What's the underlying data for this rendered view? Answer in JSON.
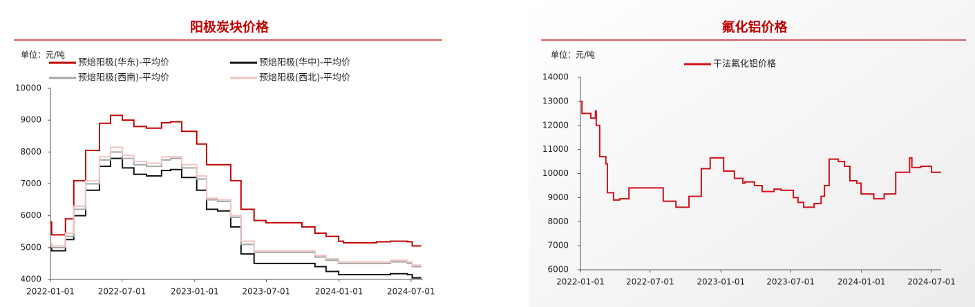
{
  "chart_data": [
    {
      "type": "line",
      "step": "after",
      "title": "阳极炭块价格",
      "unit_label": "单位：元/吨",
      "legend": "top",
      "x": [
        "2022-01-01",
        "2022-01-04",
        "2022-02-08",
        "2022-03-01",
        "2022-03-31",
        "2022-05-05",
        "2022-06-02",
        "2022-07-02",
        "2022-07-31",
        "2022-09-01",
        "2022-10-09",
        "2022-11-01",
        "2022-11-29",
        "2023-01-06",
        "2023-01-31",
        "2023-02-28",
        "2023-04-02",
        "2023-04-28",
        "2023-05-31",
        "2023-06-30",
        "2023-09-29",
        "2023-11-01",
        "2023-11-29",
        "2023-12-31",
        "2024-01-12",
        "2024-04-05",
        "2024-05-10",
        "2024-06-22",
        "2024-07-04",
        "2024-07-27"
      ],
      "series": [
        {
          "name": "预焙阳极(华东)-平均价",
          "color": "#c00000",
          "values": [
            5800,
            5400,
            5900,
            7100,
            8050,
            8900,
            9150,
            9000,
            8800,
            8750,
            8920,
            8950,
            8650,
            8250,
            7600,
            7600,
            7100,
            6200,
            5850,
            5780,
            5650,
            5450,
            5350,
            5200,
            5150,
            5180,
            5200,
            5180,
            5050,
            5050
          ]
        },
        {
          "name": "预焙阳极(华中)-平均价",
          "color": "#111111",
          "values": [
            5000,
            4900,
            5250,
            6000,
            6800,
            7550,
            7800,
            7500,
            7300,
            7250,
            7420,
            7450,
            7200,
            6800,
            6200,
            6150,
            5650,
            4800,
            4500,
            4500,
            4500,
            4400,
            4250,
            4150,
            4150,
            4150,
            4180,
            4150,
            4050,
            4050
          ]
        },
        {
          "name": "预焙阳极(西南)-平均价",
          "color": "#a6a6a6",
          "values": [
            5100,
            5000,
            5350,
            6200,
            7000,
            7750,
            8000,
            7800,
            7600,
            7550,
            7750,
            7800,
            7500,
            7150,
            6500,
            6450,
            5950,
            5100,
            4850,
            4850,
            4850,
            4700,
            4600,
            4500,
            4500,
            4500,
            4550,
            4500,
            4400,
            4400
          ]
        },
        {
          "name": "预焙阳极(西北)-平均价",
          "color": "#f2c4c4",
          "values": [
            5150,
            5050,
            5450,
            6300,
            7100,
            7850,
            8150,
            7900,
            7700,
            7650,
            7850,
            7850,
            7600,
            7250,
            6550,
            6500,
            6000,
            5200,
            4900,
            4900,
            4900,
            4750,
            4650,
            4550,
            4550,
            4550,
            4600,
            4550,
            4450,
            4450
          ]
        }
      ],
      "xlim": [
        "2022-01-01",
        "2024-07-31"
      ],
      "xticks": [
        "2022-01-01",
        "2022-07-01",
        "2023-01-01",
        "2023-07-01",
        "2024-01-01",
        "2024-07-01"
      ],
      "ylim": [
        4000,
        10000
      ],
      "yticks": [
        4000,
        5000,
        6000,
        7000,
        8000,
        9000,
        10000
      ]
    },
    {
      "type": "line",
      "step": "after",
      "title": "氟化铝价格",
      "unit_label": "单位：元/吨",
      "legend": "top",
      "x": [
        "2022-01-01",
        "2022-01-05",
        "2022-01-28",
        "2022-02-09",
        "2022-02-11",
        "2022-02-20",
        "2022-03-08",
        "2022-03-12",
        "2022-03-28",
        "2022-04-13",
        "2022-05-07",
        "2022-08-04",
        "2022-09-06",
        "2022-10-10",
        "2022-11-11",
        "2022-12-04",
        "2023-01-08",
        "2023-02-05",
        "2023-02-27",
        "2023-03-04",
        "2023-03-29",
        "2023-04-18",
        "2023-05-19",
        "2023-06-06",
        "2023-07-08",
        "2023-07-20",
        "2023-08-04",
        "2023-08-31",
        "2023-09-18",
        "2023-09-27",
        "2023-10-09",
        "2023-11-02",
        "2023-11-18",
        "2023-12-02",
        "2023-12-20",
        "2023-12-31",
        "2024-02-02",
        "2024-02-29",
        "2024-03-30",
        "2024-05-05",
        "2024-05-11",
        "2024-06-03",
        "2024-07-01",
        "2024-07-26"
      ],
      "series": [
        {
          "name": "干法氟化铝价格",
          "color": "#d0101a",
          "values": [
            13000,
            12500,
            12300,
            12600,
            12000,
            10700,
            10400,
            9200,
            8900,
            8950,
            9400,
            8850,
            8600,
            9050,
            10200,
            10650,
            10100,
            9800,
            9600,
            9650,
            9500,
            9250,
            9350,
            9300,
            9000,
            8800,
            8600,
            8750,
            9050,
            9500,
            10600,
            10500,
            10300,
            9700,
            9600,
            9150,
            8950,
            9150,
            10050,
            10650,
            10250,
            10300,
            10050,
            10050
          ]
        }
      ],
      "xlim": [
        "2022-01-01",
        "2024-07-26"
      ],
      "xticks": [
        "2022-01-01",
        "2022-07-01",
        "2023-01-01",
        "2023-07-01",
        "2024-01-01",
        "2024-07-01"
      ],
      "ylim": [
        6000,
        14000
      ],
      "yticks": [
        6000,
        7000,
        8000,
        9000,
        10000,
        11000,
        12000,
        13000,
        14000
      ]
    }
  ]
}
